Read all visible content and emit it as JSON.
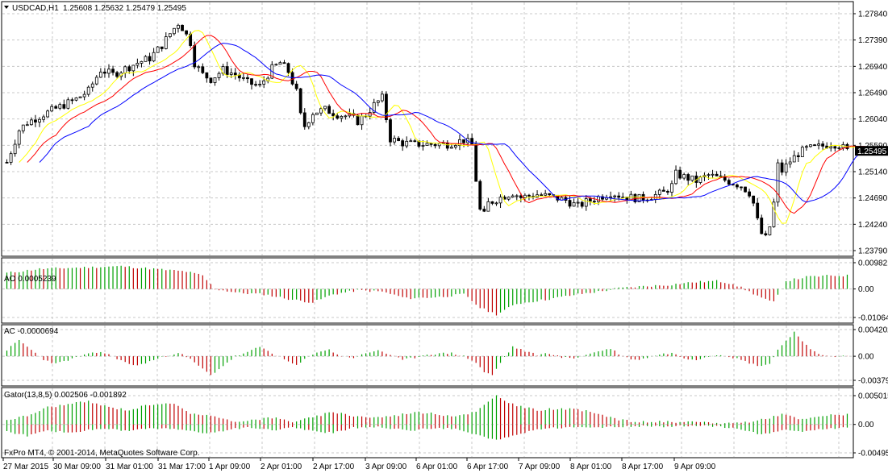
{
  "header": {
    "symbol_title": "USDCAD,H1",
    "ohlc": "1.25608 1.25632 1.25479 1.25495"
  },
  "copyright": "FxPro MT4, © 2001-2014, MetaQuotes Software Corp.",
  "colors": {
    "grid": "#c8c8c8",
    "frame": "#000000",
    "candle": "#000000",
    "ma_fast": "#ffff00",
    "ma_mid": "#ff0000",
    "ma_slow": "#0000ff",
    "osc_up": "#00a000",
    "osc_down": "#c00000",
    "price_badge_bg": "#000000",
    "price_badge_fg": "#ffffff"
  },
  "chart_data": [
    {
      "type": "candlestick",
      "panel": "price",
      "symbol": "USDCAD",
      "timeframe": "H1",
      "ylim": [
        1.2379,
        1.2784
      ],
      "y_ticks": [
        "1.27840",
        "1.27390",
        "1.26940",
        "1.26490",
        "1.26040",
        "1.25590",
        "1.25140",
        "1.24690",
        "1.24240",
        "1.23790"
      ],
      "current_price": "1.25495",
      "x_ticks": [
        "27 Mar 2015",
        "30 Mar 09:00",
        "31 Mar 01:00",
        "31 Mar 17:00",
        "1 Apr 09:00",
        "2 Apr 01:00",
        "2 Apr 17:00",
        "3 Apr 09:00",
        "6 Apr 01:00",
        "6 Apr 17:00",
        "7 Apr 09:00",
        "8 Apr 01:00",
        "8 Apr 17:00",
        "9 Apr 09:00"
      ],
      "close_path": [
        [
          0,
          1.253
        ],
        [
          3,
          1.2585
        ],
        [
          5,
          1.2598
        ],
        [
          9,
          1.2612
        ],
        [
          13,
          1.2625
        ],
        [
          17,
          1.2638
        ],
        [
          20,
          1.2652
        ],
        [
          23,
          1.2688
        ],
        [
          26,
          1.268
        ],
        [
          29,
          1.269
        ],
        [
          32,
          1.27
        ],
        [
          35,
          1.2708
        ],
        [
          38,
          1.273
        ],
        [
          40,
          1.275
        ],
        [
          42,
          1.2768
        ],
        [
          43,
          1.276
        ],
        [
          45,
          1.2735
        ],
        [
          46,
          1.27
        ],
        [
          48,
          1.268
        ],
        [
          50,
          1.2672
        ],
        [
          53,
          1.2688
        ],
        [
          56,
          1.268
        ],
        [
          59,
          1.2666
        ],
        [
          62,
          1.266
        ],
        [
          65,
          1.269
        ],
        [
          67,
          1.27
        ],
        [
          69,
          1.2685
        ],
        [
          71,
          1.265
        ],
        [
          72,
          1.261
        ],
        [
          73,
          1.2592
        ],
        [
          75,
          1.2615
        ],
        [
          78,
          1.262
        ],
        [
          81,
          1.2612
        ],
        [
          84,
          1.2608
        ],
        [
          86,
          1.26
        ],
        [
          88,
          1.2612
        ],
        [
          90,
          1.2628
        ],
        [
          92,
          1.264
        ],
        [
          93,
          1.2605
        ],
        [
          94,
          1.257
        ],
        [
          97,
          1.2563
        ],
        [
          100,
          1.2561
        ],
        [
          104,
          1.2561
        ],
        [
          108,
          1.2561
        ],
        [
          112,
          1.2568
        ],
        [
          114,
          1.256
        ],
        [
          115,
          1.25
        ],
        [
          116,
          1.2448
        ],
        [
          117,
          1.244
        ],
        [
          118,
          1.246
        ],
        [
          121,
          1.247
        ],
        [
          124,
          1.2478
        ],
        [
          126,
          1.247
        ],
        [
          130,
          1.2475
        ],
        [
          134,
          1.247
        ],
        [
          137,
          1.2465
        ],
        [
          140,
          1.2455
        ],
        [
          142,
          1.2462
        ],
        [
          145,
          1.247
        ],
        [
          148,
          1.2478
        ],
        [
          151,
          1.2472
        ],
        [
          155,
          1.2468
        ],
        [
          158,
          1.2472
        ],
        [
          161,
          1.2478
        ],
        [
          163,
          1.249
        ],
        [
          164,
          1.251
        ],
        [
          166,
          1.2505
        ],
        [
          169,
          1.2498
        ],
        [
          172,
          1.2508
        ],
        [
          175,
          1.2502
        ],
        [
          178,
          1.2495
        ],
        [
          180,
          1.249
        ],
        [
          182,
          1.2478
        ],
        [
          183,
          1.246
        ],
        [
          184,
          1.243
        ],
        [
          185,
          1.2408
        ],
        [
          186,
          1.24
        ],
        [
          187,
          1.242
        ],
        [
          188,
          1.246
        ],
        [
          189,
          1.2525
        ],
        [
          190,
          1.2515
        ],
        [
          192,
          1.2532
        ],
        [
          194,
          1.2545
        ],
        [
          196,
          1.2553
        ],
        [
          198,
          1.2555
        ],
        [
          200,
          1.2558
        ],
        [
          202,
          1.2562
        ],
        [
          204,
          1.256
        ],
        [
          206,
          1.25495
        ]
      ],
      "series": [
        {
          "name": "MA fast",
          "color": "#ffff00"
        },
        {
          "name": "MA mid",
          "color": "#ff0000"
        },
        {
          "name": "MA slow",
          "color": "#0000ff"
        }
      ]
    },
    {
      "type": "histogram",
      "panel": "ao",
      "label": "AO 0.0005239",
      "ylim": [
        -0.010649,
        0.009821
      ],
      "y_ticks": [
        "0.009821",
        "0.00",
        "-0.010649"
      ],
      "values_path": [
        [
          0,
          0.006
        ],
        [
          8,
          0.0075
        ],
        [
          18,
          0.008
        ],
        [
          28,
          0.0085
        ],
        [
          36,
          0.0075
        ],
        [
          44,
          0.0065
        ],
        [
          48,
          0.005
        ],
        [
          51,
          0.0
        ],
        [
          57,
          -0.0015
        ],
        [
          63,
          -0.002
        ],
        [
          70,
          -0.004
        ],
        [
          75,
          -0.005
        ],
        [
          80,
          -0.002
        ],
        [
          86,
          -0.0005
        ],
        [
          92,
          -0.001
        ],
        [
          98,
          -0.0035
        ],
        [
          106,
          -0.003
        ],
        [
          112,
          -0.002
        ],
        [
          116,
          -0.007
        ],
        [
          120,
          -0.0095
        ],
        [
          125,
          -0.0055
        ],
        [
          132,
          -0.004
        ],
        [
          140,
          -0.002
        ],
        [
          146,
          -0.0008
        ],
        [
          150,
          0.0003
        ],
        [
          156,
          0.001
        ],
        [
          162,
          0.0015
        ],
        [
          168,
          0.0025
        ],
        [
          174,
          0.003
        ],
        [
          178,
          0.002
        ],
        [
          182,
          -0.001
        ],
        [
          186,
          -0.004
        ],
        [
          188,
          -0.005
        ],
        [
          191,
          0.003
        ],
        [
          196,
          0.0045
        ],
        [
          202,
          0.005
        ],
        [
          206,
          0.005
        ]
      ]
    },
    {
      "type": "histogram",
      "panel": "ac",
      "label": "AC -0.0000694",
      "ylim": [
        -0.003792,
        0.004202
      ],
      "y_ticks": [
        "0.004202",
        "0.00",
        "-0.003792"
      ],
      "values_path": [
        [
          0,
          0.001
        ],
        [
          3,
          0.0025
        ],
        [
          6,
          0.001
        ],
        [
          9,
          -0.0005
        ],
        [
          12,
          -0.0012
        ],
        [
          15,
          -0.0006
        ],
        [
          19,
          0.0002
        ],
        [
          23,
          0.0007
        ],
        [
          26,
          0.0
        ],
        [
          29,
          -0.001
        ],
        [
          32,
          -0.0015
        ],
        [
          35,
          -0.0008
        ],
        [
          39,
          0.0
        ],
        [
          42,
          0.0006
        ],
        [
          45,
          -0.0005
        ],
        [
          48,
          -0.002
        ],
        [
          50,
          -0.003
        ],
        [
          53,
          -0.0015
        ],
        [
          56,
          0.0
        ],
        [
          59,
          0.0006
        ],
        [
          62,
          0.0015
        ],
        [
          65,
          0.0005
        ],
        [
          68,
          -0.0005
        ],
        [
          71,
          -0.0015
        ],
        [
          73,
          -0.0005
        ],
        [
          76,
          0.0007
        ],
        [
          79,
          0.001
        ],
        [
          82,
          0.0
        ],
        [
          85,
          -0.0002
        ],
        [
          88,
          0.0004
        ],
        [
          91,
          0.001
        ],
        [
          94,
          0.0002
        ],
        [
          97,
          -0.0006
        ],
        [
          100,
          -0.0002
        ],
        [
          103,
          0.0003
        ],
        [
          106,
          0.0004
        ],
        [
          109,
          0.0005
        ],
        [
          112,
          0.0
        ],
        [
          115,
          -0.001
        ],
        [
          117,
          -0.0025
        ],
        [
          119,
          -0.003
        ],
        [
          121,
          -0.001
        ],
        [
          124,
          0.0015
        ],
        [
          127,
          0.0008
        ],
        [
          130,
          0.0002
        ],
        [
          133,
          0.0005
        ],
        [
          136,
          -0.0002
        ],
        [
          139,
          -0.0003
        ],
        [
          142,
          0.0002
        ],
        [
          145,
          0.0008
        ],
        [
          148,
          0.0012
        ],
        [
          151,
          0.0
        ],
        [
          154,
          -0.0006
        ],
        [
          157,
          -0.0002
        ],
        [
          160,
          0.0003
        ],
        [
          163,
          0.0005
        ],
        [
          166,
          -0.0003
        ],
        [
          169,
          -0.0005
        ],
        [
          172,
          0.0
        ],
        [
          175,
          0.0003
        ],
        [
          178,
          -0.0002
        ],
        [
          181,
          -0.0008
        ],
        [
          184,
          -0.0015
        ],
        [
          187,
          -0.0012
        ],
        [
          189,
          0.001
        ],
        [
          191,
          0.0025
        ],
        [
          193,
          0.0038
        ],
        [
          195,
          0.0025
        ],
        [
          197,
          0.001
        ],
        [
          199,
          0.0003
        ],
        [
          203,
          0.0
        ],
        [
          206,
          0.0
        ]
      ]
    },
    {
      "type": "histogram",
      "panel": "gator",
      "label": "Gator(13,8,5) 0.002506 -0.001892",
      "ylim": [
        -0.004957,
        0.005015
      ],
      "y_ticks": [
        "0.005015",
        "0.00",
        "-0.004957"
      ],
      "upper_path": [
        [
          0,
          0.0008
        ],
        [
          5,
          0.0015
        ],
        [
          10,
          0.003
        ],
        [
          15,
          0.0035
        ],
        [
          20,
          0.004
        ],
        [
          25,
          0.003
        ],
        [
          30,
          0.0025
        ],
        [
          35,
          0.0035
        ],
        [
          40,
          0.0038
        ],
        [
          45,
          0.002
        ],
        [
          50,
          0.0015
        ],
        [
          55,
          0.0005
        ],
        [
          60,
          0.0008
        ],
        [
          65,
          0.0012
        ],
        [
          70,
          0.0005
        ],
        [
          75,
          0.0012
        ],
        [
          80,
          0.0022
        ],
        [
          85,
          0.0015
        ],
        [
          90,
          0.0012
        ],
        [
          95,
          0.0015
        ],
        [
          100,
          0.0022
        ],
        [
          105,
          0.0018
        ],
        [
          110,
          0.0015
        ],
        [
          115,
          0.0022
        ],
        [
          120,
          0.005
        ],
        [
          125,
          0.0032
        ],
        [
          130,
          0.0025
        ],
        [
          135,
          0.0028
        ],
        [
          140,
          0.0025
        ],
        [
          145,
          0.002
        ],
        [
          150,
          0.0008
        ],
        [
          155,
          0.0004
        ],
        [
          160,
          0.0005
        ],
        [
          165,
          0.0003
        ],
        [
          170,
          0.0004
        ],
        [
          175,
          0.0002
        ],
        [
          180,
          0.0003
        ],
        [
          185,
          0.0008
        ],
        [
          190,
          0.0018
        ],
        [
          195,
          0.0008
        ],
        [
          200,
          0.0015
        ],
        [
          206,
          0.0018
        ]
      ],
      "lower_path": [
        [
          0,
          -0.0012
        ],
        [
          5,
          -0.002
        ],
        [
          10,
          -0.001
        ],
        [
          15,
          -0.0015
        ],
        [
          20,
          -0.001
        ],
        [
          25,
          -0.0008
        ],
        [
          30,
          -0.0012
        ],
        [
          35,
          -0.0006
        ],
        [
          40,
          -0.0008
        ],
        [
          45,
          -0.0012
        ],
        [
          50,
          -0.0015
        ],
        [
          55,
          -0.0008
        ],
        [
          60,
          -0.0005
        ],
        [
          65,
          -0.001
        ],
        [
          70,
          -0.0005
        ],
        [
          75,
          -0.0012
        ],
        [
          80,
          -0.0015
        ],
        [
          85,
          -0.0006
        ],
        [
          90,
          -0.0004
        ],
        [
          95,
          -0.0008
        ],
        [
          100,
          -0.001
        ],
        [
          105,
          -0.0006
        ],
        [
          110,
          -0.0008
        ],
        [
          115,
          -0.0018
        ],
        [
          120,
          -0.0028
        ],
        [
          125,
          -0.0018
        ],
        [
          130,
          -0.0008
        ],
        [
          135,
          -0.0006
        ],
        [
          140,
          -0.0004
        ],
        [
          145,
          -0.0006
        ],
        [
          150,
          -0.0004
        ],
        [
          155,
          -0.0003
        ],
        [
          160,
          -0.0004
        ],
        [
          165,
          -0.0003
        ],
        [
          170,
          -0.0002
        ],
        [
          175,
          -0.0004
        ],
        [
          180,
          -0.0008
        ],
        [
          185,
          -0.0018
        ],
        [
          190,
          -0.001
        ],
        [
          195,
          -0.0012
        ],
        [
          200,
          -0.0008
        ],
        [
          206,
          -0.0005
        ]
      ]
    }
  ]
}
